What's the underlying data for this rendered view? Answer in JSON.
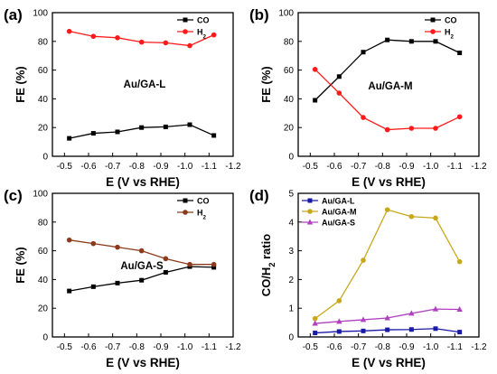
{
  "chart_data": [
    {
      "panel_label": "(a)",
      "type": "line",
      "annotation": "Au/GA-L",
      "xlabel": "E (V vs RHE)",
      "ylabel": "FE (%)",
      "x": [
        -0.52,
        -0.62,
        -0.72,
        -0.82,
        -0.92,
        -1.02,
        -1.12
      ],
      "xlim": [
        -0.45,
        -1.2
      ],
      "ylim": [
        0,
        100
      ],
      "xticks": [
        -0.5,
        -0.6,
        -0.7,
        -0.8,
        -0.9,
        -1.0,
        -1.1,
        -1.2
      ],
      "xtick_labels": [
        "-0.5",
        "-0.6",
        "-0.7",
        "-0.8",
        "-0.9",
        "-1.0",
        "-1.1",
        "-1.2"
      ],
      "yticks": [
        0,
        20,
        40,
        60,
        80,
        100
      ],
      "ytick_labels": [
        "0",
        "20",
        "40",
        "60",
        "80",
        "100"
      ],
      "legend_position": "top-right",
      "series": [
        {
          "name": "CO",
          "color": "#000000",
          "marker": "square",
          "values": [
            12.5,
            16,
            17,
            20,
            20.5,
            22,
            14.5
          ]
        },
        {
          "name": "H2",
          "color": "#ff1a1a",
          "marker": "circle",
          "values": [
            87,
            83.5,
            82.5,
            79.5,
            79,
            77,
            84.5
          ]
        }
      ]
    },
    {
      "panel_label": "(b)",
      "type": "line",
      "annotation": "Au/GA-M",
      "xlabel": "E (V vs RHE)",
      "ylabel": "FE (%)",
      "x": [
        -0.52,
        -0.62,
        -0.72,
        -0.82,
        -0.92,
        -1.02,
        -1.12
      ],
      "xlim": [
        -0.45,
        -1.2
      ],
      "ylim": [
        0,
        100
      ],
      "xticks": [
        -0.5,
        -0.6,
        -0.7,
        -0.8,
        -0.9,
        -1.0,
        -1.1,
        -1.2
      ],
      "xtick_labels": [
        "-0.5",
        "-0.6",
        "-0.7",
        "-0.8",
        "-0.9",
        "-1.0",
        "-1.1",
        "-1.2"
      ],
      "yticks": [
        0,
        20,
        40,
        60,
        80,
        100
      ],
      "ytick_labels": [
        "0",
        "20",
        "40",
        "60",
        "80",
        "100"
      ],
      "legend_position": "top-right",
      "series": [
        {
          "name": "CO",
          "color": "#000000",
          "marker": "square",
          "values": [
            39,
            55.5,
            72.5,
            81,
            80,
            80,
            72
          ]
        },
        {
          "name": "H2",
          "color": "#ff1a1a",
          "marker": "circle",
          "values": [
            60.5,
            44,
            27,
            18.5,
            19.5,
            19.5,
            27.5
          ]
        }
      ]
    },
    {
      "panel_label": "(c)",
      "type": "line",
      "annotation": "Au/GA-S",
      "xlabel": "E (V vs RHE)",
      "ylabel": "FE (%)",
      "x": [
        -0.52,
        -0.62,
        -0.72,
        -0.82,
        -0.92,
        -1.02,
        -1.12
      ],
      "xlim": [
        -0.45,
        -1.2
      ],
      "ylim": [
        0,
        100
      ],
      "xticks": [
        -0.5,
        -0.6,
        -0.7,
        -0.8,
        -0.9,
        -1.0,
        -1.1,
        -1.2
      ],
      "xtick_labels": [
        "-0.5",
        "-0.6",
        "-0.7",
        "-0.8",
        "-0.9",
        "-1.0",
        "-1.1",
        "-1.2"
      ],
      "yticks": [
        0,
        20,
        40,
        60,
        80,
        100
      ],
      "ytick_labels": [
        "0",
        "20",
        "40",
        "60",
        "80",
        "100"
      ],
      "legend_position": "top-right",
      "series": [
        {
          "name": "CO",
          "color": "#000000",
          "marker": "square",
          "values": [
            32,
            35,
            37.5,
            39.5,
            45,
            49,
            48.5
          ]
        },
        {
          "name": "H2",
          "color": "#8b3a1a",
          "marker": "circle",
          "values": [
            67.5,
            65,
            62.5,
            60,
            54.5,
            50.5,
            50.5
          ]
        }
      ]
    },
    {
      "panel_label": "(d)",
      "type": "line",
      "annotation": "",
      "xlabel": "E (V vs RHE)",
      "ylabel": "CO/H2 ratio",
      "x": [
        -0.52,
        -0.62,
        -0.72,
        -0.82,
        -0.92,
        -1.02,
        -1.12
      ],
      "xlim": [
        -0.45,
        -1.2
      ],
      "ylim": [
        0,
        5
      ],
      "xticks": [
        -0.5,
        -0.6,
        -0.7,
        -0.8,
        -0.9,
        -1.0,
        -1.1,
        -1.2
      ],
      "xtick_labels": [
        "-0.5",
        "-0.6",
        "-0.7",
        "-0.8",
        "-0.9",
        "-1.0",
        "-1.1",
        "-1.2"
      ],
      "yticks": [
        0,
        1,
        2,
        3,
        4,
        5
      ],
      "ytick_labels": [
        "0",
        "1",
        "2",
        "3",
        "4",
        "5"
      ],
      "legend_position": "top-left",
      "series": [
        {
          "name": "Au/GA-L",
          "color": "#1a1aa8",
          "marker": "square",
          "values": [
            0.14,
            0.19,
            0.21,
            0.25,
            0.26,
            0.29,
            0.17
          ]
        },
        {
          "name": "Au/GA-M",
          "color": "#c8a81a",
          "marker": "circle",
          "values": [
            0.64,
            1.26,
            2.67,
            4.43,
            4.19,
            4.14,
            2.62
          ]
        },
        {
          "name": "Au/GA-S",
          "color": "#b040c0",
          "marker": "triangle",
          "values": [
            0.47,
            0.54,
            0.6,
            0.66,
            0.82,
            0.97,
            0.96
          ]
        }
      ]
    }
  ]
}
